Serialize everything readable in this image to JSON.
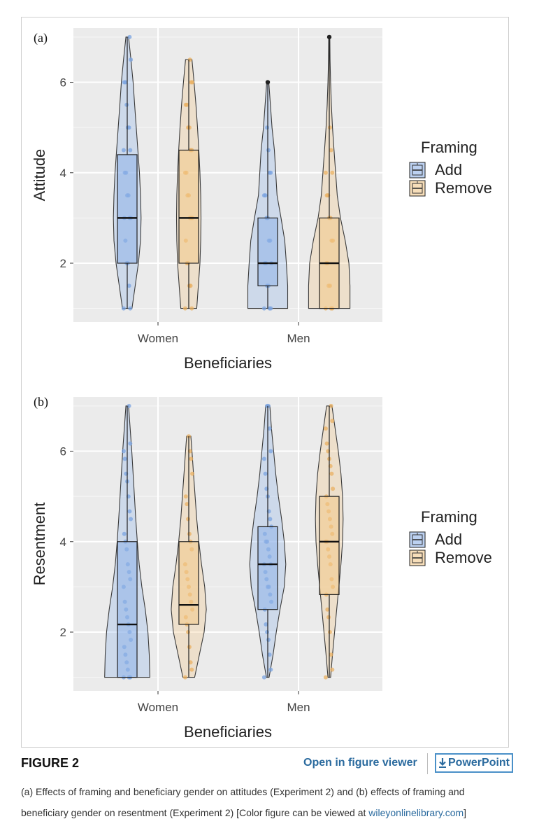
{
  "chart_data": [
    {
      "type": "violin",
      "panel_label": "(a)",
      "xlabel": "Beneficiaries",
      "ylabel": "Attitude",
      "categories": [
        "Women",
        "Men"
      ],
      "yticks": [
        2,
        4,
        6
      ],
      "ylim": [
        0.7,
        7.2
      ],
      "grid": true,
      "legend": {
        "title": "Framing",
        "position": "right",
        "entries": [
          "Add",
          "Remove"
        ]
      },
      "series": [
        {
          "name": "Add",
          "color": "#8fb3e8",
          "dot_color": "#7aa3e0",
          "groups": [
            {
              "category": "Women",
              "min": 1,
              "q1": 2,
              "median": 3,
              "q3": 4.4,
              "max": 7,
              "profile": [
                [
                  1,
                  0.18
                ],
                [
                  1.5,
                  0.3
                ],
                [
                  2,
                  0.42
                ],
                [
                  2.5,
                  0.5
                ],
                [
                  3,
                  0.52
                ],
                [
                  3.5,
                  0.5
                ],
                [
                  4,
                  0.46
                ],
                [
                  4.5,
                  0.4
                ],
                [
                  5,
                  0.34
                ],
                [
                  5.5,
                  0.28
                ],
                [
                  6,
                  0.22
                ],
                [
                  6.5,
                  0.14
                ],
                [
                  7,
                  0.05
                ]
              ],
              "points": [
                1,
                1,
                1.5,
                2,
                2,
                2.5,
                3,
                3,
                3,
                3.5,
                3.5,
                4,
                4,
                4.5,
                4.5,
                5,
                5,
                5.5,
                6,
                6,
                6.5,
                7
              ],
              "outliers": []
            },
            {
              "category": "Men",
              "min": 1,
              "q1": 1.5,
              "median": 2,
              "q3": 3,
              "max": 5,
              "profile": [
                [
                  1,
                  0.75
                ],
                [
                  1.5,
                  0.75
                ],
                [
                  2,
                  0.7
                ],
                [
                  2.5,
                  0.64
                ],
                [
                  3,
                  0.5
                ],
                [
                  3.5,
                  0.35
                ],
                [
                  4,
                  0.3
                ],
                [
                  4.5,
                  0.25
                ],
                [
                  5,
                  0.16
                ],
                [
                  5.5,
                  0.1
                ],
                [
                  6,
                  0.04
                ]
              ],
              "points": [
                1,
                1,
                1,
                1.5,
                1.5,
                2,
                2,
                2,
                2.5,
                2.5,
                3,
                3,
                3.5,
                3.5,
                4,
                4,
                4.5,
                5
              ],
              "outliers": [
                6
              ]
            }
          ]
        },
        {
          "name": "Remove",
          "color": "#f2c88a",
          "dot_color": "#eab062",
          "groups": [
            {
              "category": "Women",
              "min": 1,
              "q1": 2,
              "median": 3,
              "q3": 4.5,
              "max": 6.5,
              "profile": [
                [
                  1,
                  0.3
                ],
                [
                  1.5,
                  0.36
                ],
                [
                  2,
                  0.42
                ],
                [
                  2.5,
                  0.45
                ],
                [
                  3,
                  0.46
                ],
                [
                  3.5,
                  0.45
                ],
                [
                  4,
                  0.42
                ],
                [
                  4.5,
                  0.38
                ],
                [
                  5,
                  0.33
                ],
                [
                  5.5,
                  0.27
                ],
                [
                  6,
                  0.2
                ],
                [
                  6.5,
                  0.12
                ]
              ],
              "points": [
                1,
                1,
                1.5,
                1.5,
                2,
                2,
                2.5,
                3,
                3,
                3,
                3.5,
                3.5,
                4,
                4,
                4.5,
                4.5,
                5,
                5,
                5.5,
                5.5,
                6,
                6,
                6.5
              ],
              "outliers": []
            },
            {
              "category": "Men",
              "min": 1,
              "q1": 1,
              "median": 2,
              "q3": 3,
              "max": 5,
              "profile": [
                [
                  1,
                  0.78
                ],
                [
                  1.5,
                  0.78
                ],
                [
                  2,
                  0.74
                ],
                [
                  2.5,
                  0.6
                ],
                [
                  3,
                  0.42
                ],
                [
                  3.5,
                  0.3
                ],
                [
                  4,
                  0.24
                ],
                [
                  4.5,
                  0.18
                ],
                [
                  5,
                  0.12
                ],
                [
                  5.5,
                  0.08
                ],
                [
                  6,
                  0.05
                ],
                [
                  6.5,
                  0.03
                ],
                [
                  7,
                  0.02
                ]
              ],
              "points": [
                1,
                1,
                1,
                1.5,
                1.5,
                2,
                2,
                2.5,
                2.5,
                3,
                3,
                3.5,
                3.5,
                4,
                4,
                4.5,
                5
              ],
              "outliers": [
                7
              ]
            }
          ]
        }
      ]
    },
    {
      "type": "violin",
      "panel_label": "(b)",
      "xlabel": "Beneficiaries",
      "ylabel": "Resentment",
      "categories": [
        "Women",
        "Men"
      ],
      "yticks": [
        2,
        4,
        6
      ],
      "ylim": [
        0.7,
        7.2
      ],
      "grid": true,
      "legend": {
        "title": "Framing",
        "position": "right",
        "entries": [
          "Add",
          "Remove"
        ]
      },
      "series": [
        {
          "name": "Add",
          "color": "#8fb3e8",
          "dot_color": "#7aa3e0",
          "groups": [
            {
              "category": "Women",
              "min": 1,
              "q1": 1,
              "median": 2.17,
              "q3": 4,
              "max": 7,
              "profile": [
                [
                  1,
                  0.85
                ],
                [
                  1.5,
                  0.83
                ],
                [
                  2,
                  0.78
                ],
                [
                  2.5,
                  0.68
                ],
                [
                  3,
                  0.55
                ],
                [
                  3.5,
                  0.45
                ],
                [
                  4,
                  0.38
                ],
                [
                  4.5,
                  0.32
                ],
                [
                  5,
                  0.27
                ],
                [
                  5.5,
                  0.22
                ],
                [
                  6,
                  0.17
                ],
                [
                  6.5,
                  0.11
                ],
                [
                  7,
                  0.05
                ]
              ],
              "points": [
                1,
                1,
                1,
                1.17,
                1.33,
                1.5,
                1.67,
                1.83,
                2,
                2.17,
                2.33,
                2.5,
                2.67,
                3,
                3.17,
                3.33,
                3.5,
                3.83,
                4,
                4.17,
                4.5,
                4.67,
                5,
                5.33,
                5.5,
                5.83,
                6,
                6.17,
                7
              ],
              "outliers": []
            },
            {
              "category": "Men",
              "min": 1,
              "q1": 2.5,
              "median": 3.5,
              "q3": 4.33,
              "max": 7,
              "profile": [
                [
                  1,
                  0.05
                ],
                [
                  1.5,
                  0.2
                ],
                [
                  2,
                  0.32
                ],
                [
                  2.5,
                  0.46
                ],
                [
                  3,
                  0.62
                ],
                [
                  3.5,
                  0.68
                ],
                [
                  4,
                  0.62
                ],
                [
                  4.5,
                  0.52
                ],
                [
                  5,
                  0.4
                ],
                [
                  5.5,
                  0.3
                ],
                [
                  6,
                  0.22
                ],
                [
                  6.5,
                  0.14
                ],
                [
                  7,
                  0.08
                ]
              ],
              "points": [
                1,
                1.17,
                1.5,
                1.83,
                2,
                2.17,
                2.5,
                2.67,
                2.83,
                3,
                3,
                3.17,
                3.33,
                3.5,
                3.5,
                3.67,
                3.83,
                4,
                4,
                4.17,
                4.33,
                4.5,
                4.67,
                5,
                5.17,
                5.5,
                5.83,
                6,
                6.5,
                7,
                7
              ],
              "outliers": []
            }
          ]
        },
        {
          "name": "Remove",
          "color": "#f2c88a",
          "dot_color": "#eab062",
          "groups": [
            {
              "category": "Women",
              "min": 1,
              "q1": 2.17,
              "median": 2.6,
              "q3": 4,
              "max": 6.33,
              "profile": [
                [
                  1,
                  0.22
                ],
                [
                  1.5,
                  0.4
                ],
                [
                  2,
                  0.58
                ],
                [
                  2.5,
                  0.66
                ],
                [
                  3,
                  0.6
                ],
                [
                  3.5,
                  0.48
                ],
                [
                  4,
                  0.38
                ],
                [
                  4.5,
                  0.3
                ],
                [
                  5,
                  0.24
                ],
                [
                  5.5,
                  0.18
                ],
                [
                  6,
                  0.12
                ],
                [
                  6.33,
                  0.08
                ]
              ],
              "points": [
                1,
                1.17,
                1.33,
                1.67,
                2,
                2.17,
                2.33,
                2.5,
                2.67,
                2.83,
                3,
                3.17,
                3.33,
                3.5,
                3.83,
                4,
                4.17,
                4.5,
                4.83,
                5,
                5.5,
                5.83,
                6,
                6.33
              ],
              "outliers": []
            },
            {
              "category": "Men",
              "min": 1,
              "q1": 2.83,
              "median": 4,
              "q3": 5,
              "max": 7,
              "profile": [
                [
                  1,
                  0.05
                ],
                [
                  1.5,
                  0.12
                ],
                [
                  2,
                  0.2
                ],
                [
                  2.5,
                  0.28
                ],
                [
                  3,
                  0.36
                ],
                [
                  3.5,
                  0.44
                ],
                [
                  4,
                  0.5
                ],
                [
                  4.5,
                  0.52
                ],
                [
                  5,
                  0.5
                ],
                [
                  5.5,
                  0.44
                ],
                [
                  6,
                  0.34
                ],
                [
                  6.5,
                  0.22
                ],
                [
                  7,
                  0.1
                ]
              ],
              "points": [
                1,
                1.17,
                1.5,
                2,
                2.33,
                2.5,
                2.83,
                3,
                3.17,
                3.5,
                3.67,
                3.83,
                4,
                4,
                4.17,
                4.33,
                4.5,
                4.67,
                4.83,
                5,
                5.17,
                5.5,
                5.67,
                5.83,
                6,
                6.17,
                6.5,
                6.67,
                7
              ],
              "outliers": []
            }
          ]
        }
      ]
    }
  ],
  "figure": {
    "label": "FIGURE 2",
    "viewer_link": "Open in figure viewer",
    "ppt_link": "PowerPoint",
    "caption_text": "(a) Effects of framing and beneficiary gender on attitudes (Experiment 2) and (b) effects of framing and beneficiary gender on resentment (Experiment 2) [Color figure can be viewed at ",
    "caption_link": "wileyonlinelibrary.com",
    "caption_end": "]"
  }
}
